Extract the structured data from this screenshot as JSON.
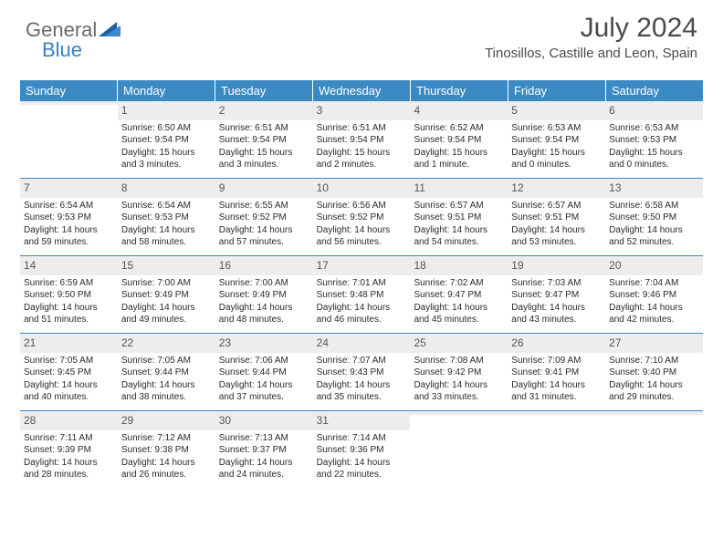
{
  "logo": {
    "part1": "General",
    "part2": "Blue"
  },
  "title": "July 2024",
  "location": "Tinosillos, Castille and Leon, Spain",
  "colors": {
    "header_bg": "#3b8ac4",
    "header_text": "#ffffff",
    "daynum_bg": "#ededed",
    "week_border": "#3b8ac4",
    "logo_gray": "#6a6a6a",
    "logo_blue": "#3b7fc4"
  },
  "dow": [
    "Sunday",
    "Monday",
    "Tuesday",
    "Wednesday",
    "Thursday",
    "Friday",
    "Saturday"
  ],
  "weeks": [
    [
      {
        "n": "",
        "l1": "",
        "l2": "",
        "l3": "",
        "l4": ""
      },
      {
        "n": "1",
        "l1": "Sunrise: 6:50 AM",
        "l2": "Sunset: 9:54 PM",
        "l3": "Daylight: 15 hours",
        "l4": "and 3 minutes."
      },
      {
        "n": "2",
        "l1": "Sunrise: 6:51 AM",
        "l2": "Sunset: 9:54 PM",
        "l3": "Daylight: 15 hours",
        "l4": "and 3 minutes."
      },
      {
        "n": "3",
        "l1": "Sunrise: 6:51 AM",
        "l2": "Sunset: 9:54 PM",
        "l3": "Daylight: 15 hours",
        "l4": "and 2 minutes."
      },
      {
        "n": "4",
        "l1": "Sunrise: 6:52 AM",
        "l2": "Sunset: 9:54 PM",
        "l3": "Daylight: 15 hours",
        "l4": "and 1 minute."
      },
      {
        "n": "5",
        "l1": "Sunrise: 6:53 AM",
        "l2": "Sunset: 9:54 PM",
        "l3": "Daylight: 15 hours",
        "l4": "and 0 minutes."
      },
      {
        "n": "6",
        "l1": "Sunrise: 6:53 AM",
        "l2": "Sunset: 9:53 PM",
        "l3": "Daylight: 15 hours",
        "l4": "and 0 minutes."
      }
    ],
    [
      {
        "n": "7",
        "l1": "Sunrise: 6:54 AM",
        "l2": "Sunset: 9:53 PM",
        "l3": "Daylight: 14 hours",
        "l4": "and 59 minutes."
      },
      {
        "n": "8",
        "l1": "Sunrise: 6:54 AM",
        "l2": "Sunset: 9:53 PM",
        "l3": "Daylight: 14 hours",
        "l4": "and 58 minutes."
      },
      {
        "n": "9",
        "l1": "Sunrise: 6:55 AM",
        "l2": "Sunset: 9:52 PM",
        "l3": "Daylight: 14 hours",
        "l4": "and 57 minutes."
      },
      {
        "n": "10",
        "l1": "Sunrise: 6:56 AM",
        "l2": "Sunset: 9:52 PM",
        "l3": "Daylight: 14 hours",
        "l4": "and 56 minutes."
      },
      {
        "n": "11",
        "l1": "Sunrise: 6:57 AM",
        "l2": "Sunset: 9:51 PM",
        "l3": "Daylight: 14 hours",
        "l4": "and 54 minutes."
      },
      {
        "n": "12",
        "l1": "Sunrise: 6:57 AM",
        "l2": "Sunset: 9:51 PM",
        "l3": "Daylight: 14 hours",
        "l4": "and 53 minutes."
      },
      {
        "n": "13",
        "l1": "Sunrise: 6:58 AM",
        "l2": "Sunset: 9:50 PM",
        "l3": "Daylight: 14 hours",
        "l4": "and 52 minutes."
      }
    ],
    [
      {
        "n": "14",
        "l1": "Sunrise: 6:59 AM",
        "l2": "Sunset: 9:50 PM",
        "l3": "Daylight: 14 hours",
        "l4": "and 51 minutes."
      },
      {
        "n": "15",
        "l1": "Sunrise: 7:00 AM",
        "l2": "Sunset: 9:49 PM",
        "l3": "Daylight: 14 hours",
        "l4": "and 49 minutes."
      },
      {
        "n": "16",
        "l1": "Sunrise: 7:00 AM",
        "l2": "Sunset: 9:49 PM",
        "l3": "Daylight: 14 hours",
        "l4": "and 48 minutes."
      },
      {
        "n": "17",
        "l1": "Sunrise: 7:01 AM",
        "l2": "Sunset: 9:48 PM",
        "l3": "Daylight: 14 hours",
        "l4": "and 46 minutes."
      },
      {
        "n": "18",
        "l1": "Sunrise: 7:02 AM",
        "l2": "Sunset: 9:47 PM",
        "l3": "Daylight: 14 hours",
        "l4": "and 45 minutes."
      },
      {
        "n": "19",
        "l1": "Sunrise: 7:03 AM",
        "l2": "Sunset: 9:47 PM",
        "l3": "Daylight: 14 hours",
        "l4": "and 43 minutes."
      },
      {
        "n": "20",
        "l1": "Sunrise: 7:04 AM",
        "l2": "Sunset: 9:46 PM",
        "l3": "Daylight: 14 hours",
        "l4": "and 42 minutes."
      }
    ],
    [
      {
        "n": "21",
        "l1": "Sunrise: 7:05 AM",
        "l2": "Sunset: 9:45 PM",
        "l3": "Daylight: 14 hours",
        "l4": "and 40 minutes."
      },
      {
        "n": "22",
        "l1": "Sunrise: 7:05 AM",
        "l2": "Sunset: 9:44 PM",
        "l3": "Daylight: 14 hours",
        "l4": "and 38 minutes."
      },
      {
        "n": "23",
        "l1": "Sunrise: 7:06 AM",
        "l2": "Sunset: 9:44 PM",
        "l3": "Daylight: 14 hours",
        "l4": "and 37 minutes."
      },
      {
        "n": "24",
        "l1": "Sunrise: 7:07 AM",
        "l2": "Sunset: 9:43 PM",
        "l3": "Daylight: 14 hours",
        "l4": "and 35 minutes."
      },
      {
        "n": "25",
        "l1": "Sunrise: 7:08 AM",
        "l2": "Sunset: 9:42 PM",
        "l3": "Daylight: 14 hours",
        "l4": "and 33 minutes."
      },
      {
        "n": "26",
        "l1": "Sunrise: 7:09 AM",
        "l2": "Sunset: 9:41 PM",
        "l3": "Daylight: 14 hours",
        "l4": "and 31 minutes."
      },
      {
        "n": "27",
        "l1": "Sunrise: 7:10 AM",
        "l2": "Sunset: 9:40 PM",
        "l3": "Daylight: 14 hours",
        "l4": "and 29 minutes."
      }
    ],
    [
      {
        "n": "28",
        "l1": "Sunrise: 7:11 AM",
        "l2": "Sunset: 9:39 PM",
        "l3": "Daylight: 14 hours",
        "l4": "and 28 minutes."
      },
      {
        "n": "29",
        "l1": "Sunrise: 7:12 AM",
        "l2": "Sunset: 9:38 PM",
        "l3": "Daylight: 14 hours",
        "l4": "and 26 minutes."
      },
      {
        "n": "30",
        "l1": "Sunrise: 7:13 AM",
        "l2": "Sunset: 9:37 PM",
        "l3": "Daylight: 14 hours",
        "l4": "and 24 minutes."
      },
      {
        "n": "31",
        "l1": "Sunrise: 7:14 AM",
        "l2": "Sunset: 9:36 PM",
        "l3": "Daylight: 14 hours",
        "l4": "and 22 minutes."
      },
      {
        "n": "",
        "l1": "",
        "l2": "",
        "l3": "",
        "l4": ""
      },
      {
        "n": "",
        "l1": "",
        "l2": "",
        "l3": "",
        "l4": ""
      },
      {
        "n": "",
        "l1": "",
        "l2": "",
        "l3": "",
        "l4": ""
      }
    ]
  ]
}
